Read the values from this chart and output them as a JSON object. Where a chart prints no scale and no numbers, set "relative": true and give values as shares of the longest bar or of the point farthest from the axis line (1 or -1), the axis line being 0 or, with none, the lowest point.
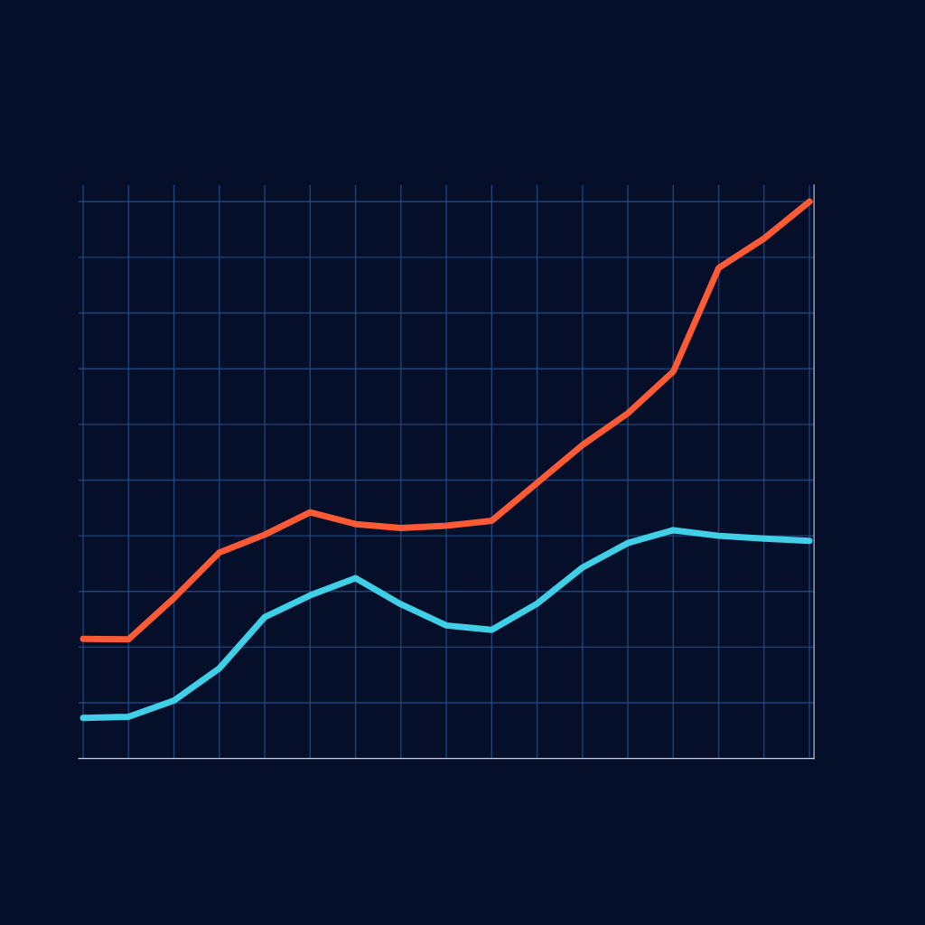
{
  "chart_data": {
    "type": "line",
    "relative": true,
    "grid": true,
    "marker": "none",
    "line_style": "solid",
    "categories": [
      null,
      null,
      null,
      null,
      null,
      null,
      null,
      null,
      null,
      null,
      null,
      null,
      null,
      null,
      null,
      null,
      null
    ],
    "series": [
      {
        "color": "#ff5a36",
        "values": [
          0.215,
          0.214,
          0.288,
          0.37,
          0.402,
          0.442,
          0.421,
          0.414,
          0.418,
          0.427,
          0.495,
          0.563,
          0.62,
          0.695,
          0.881,
          0.934,
          1
        ]
      },
      {
        "color": "#3fd0e8",
        "values": [
          0.073,
          0.075,
          0.104,
          0.162,
          0.254,
          0.293,
          0.324,
          0.277,
          0.239,
          0.231,
          0.278,
          0.343,
          0.387,
          0.41,
          0.4,
          0.395,
          0.391
        ]
      }
    ]
  }
}
